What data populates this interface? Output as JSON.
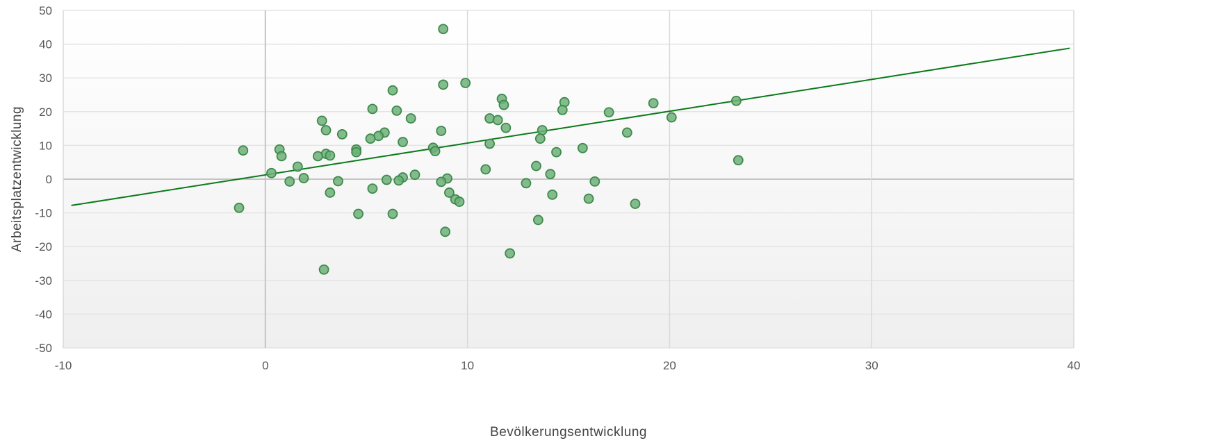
{
  "chart_data": {
    "type": "scatter",
    "xlabel": "Bevölkerungsentwicklung",
    "ylabel": "Arbeitsplatzentwicklung",
    "xlim": [
      -10,
      40
    ],
    "ylim": [
      -50,
      50
    ],
    "xticks": [
      "-10",
      "0",
      "10",
      "20",
      "30",
      "40"
    ],
    "yticks": [
      "50",
      "40",
      "30",
      "20",
      "10",
      "0",
      "-10",
      "-20",
      "-30",
      "-40",
      "-50"
    ],
    "grid": true,
    "colors": {
      "points": "#6fb07a",
      "point_edge": "#3d8a4a",
      "trendline": "#0a7a1a"
    },
    "trendline": {
      "x": [
        -9.6,
        39.8
      ],
      "y": [
        -7.8,
        38.8
      ]
    },
    "series": [
      {
        "points": [
          [
            8.8,
            44.5
          ],
          [
            9.9,
            28.5
          ],
          [
            8.8,
            28.0
          ],
          [
            6.3,
            26.3
          ],
          [
            11.7,
            23.8
          ],
          [
            11.8,
            22.0
          ],
          [
            14.8,
            22.8
          ],
          [
            14.7,
            20.5
          ],
          [
            19.2,
            22.5
          ],
          [
            23.3,
            23.2
          ],
          [
            5.3,
            20.8
          ],
          [
            6.5,
            20.3
          ],
          [
            17.0,
            19.8
          ],
          [
            7.2,
            18.0
          ],
          [
            11.1,
            18.0
          ],
          [
            11.5,
            17.5
          ],
          [
            20.1,
            18.3
          ],
          [
            2.8,
            17.3
          ],
          [
            3.0,
            14.5
          ],
          [
            11.9,
            15.2
          ],
          [
            13.7,
            14.5
          ],
          [
            17.9,
            13.8
          ],
          [
            8.7,
            14.3
          ],
          [
            3.8,
            13.3
          ],
          [
            5.9,
            13.8
          ],
          [
            5.6,
            12.8
          ],
          [
            5.2,
            12.0
          ],
          [
            13.6,
            12.0
          ],
          [
            6.8,
            11.0
          ],
          [
            11.1,
            10.5
          ],
          [
            15.7,
            9.2
          ],
          [
            8.3,
            9.3
          ],
          [
            8.4,
            8.3
          ],
          [
            4.5,
            8.8
          ],
          [
            4.5,
            8.0
          ],
          [
            14.4,
            8.0
          ],
          [
            -1.1,
            8.5
          ],
          [
            0.7,
            8.8
          ],
          [
            0.8,
            6.8
          ],
          [
            3.0,
            7.5
          ],
          [
            3.2,
            7.0
          ],
          [
            2.6,
            6.8
          ],
          [
            23.4,
            5.6
          ],
          [
            13.4,
            3.9
          ],
          [
            1.6,
            3.7
          ],
          [
            10.9,
            2.9
          ],
          [
            0.3,
            1.8
          ],
          [
            7.4,
            1.3
          ],
          [
            14.1,
            1.5
          ],
          [
            6.8,
            0.5
          ],
          [
            1.9,
            0.3
          ],
          [
            9.0,
            0.2
          ],
          [
            6.0,
            -0.2
          ],
          [
            6.6,
            -0.4
          ],
          [
            1.2,
            -0.7
          ],
          [
            3.6,
            -0.6
          ],
          [
            8.7,
            -0.8
          ],
          [
            16.3,
            -0.7
          ],
          [
            12.9,
            -1.2
          ],
          [
            5.3,
            -2.8
          ],
          [
            3.2,
            -4.0
          ],
          [
            9.1,
            -4.0
          ],
          [
            14.2,
            -4.6
          ],
          [
            9.4,
            -6.0
          ],
          [
            16.0,
            -5.8
          ],
          [
            9.6,
            -6.7
          ],
          [
            18.3,
            -7.3
          ],
          [
            -1.3,
            -8.5
          ],
          [
            4.6,
            -10.3
          ],
          [
            6.3,
            -10.3
          ],
          [
            13.5,
            -12.1
          ],
          [
            8.9,
            -15.6
          ],
          [
            12.1,
            -22.0
          ],
          [
            2.9,
            -26.8
          ]
        ]
      }
    ]
  }
}
